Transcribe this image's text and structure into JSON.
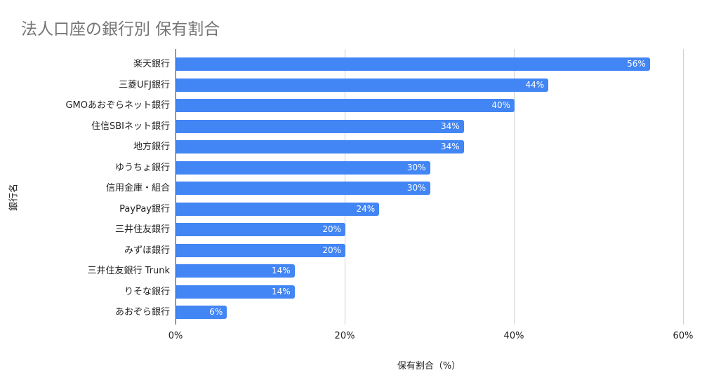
{
  "chart_data": {
    "type": "bar",
    "orientation": "horizontal",
    "title": "法人口座の銀行別 保有割合",
    "xlabel": "保有割合（%）",
    "ylabel": "銀行名",
    "xlim": [
      0,
      60
    ],
    "xticks": [
      "0%",
      "20%",
      "40%",
      "60%"
    ],
    "grid": true,
    "legend": "none",
    "bar_color": "#4285F4",
    "categories": [
      "楽天銀行",
      "三菱UFJ銀行",
      "GMOあおぞらネット銀行",
      "住信SBIネット銀行",
      "地方銀行",
      "ゆうちょ銀行",
      "信用金庫・組合",
      "PayPay銀行",
      "三井住友銀行",
      "みずほ銀行",
      "三井住友銀行 Trunk",
      "りそな銀行",
      "あおぞら銀行"
    ],
    "values": [
      56,
      44,
      40,
      34,
      34,
      30,
      30,
      24,
      20,
      20,
      14,
      14,
      6
    ],
    "value_labels": [
      "56%",
      "44%",
      "40%",
      "34%",
      "34%",
      "30%",
      "30%",
      "24%",
      "20%",
      "20%",
      "14%",
      "14%",
      "6%"
    ]
  }
}
